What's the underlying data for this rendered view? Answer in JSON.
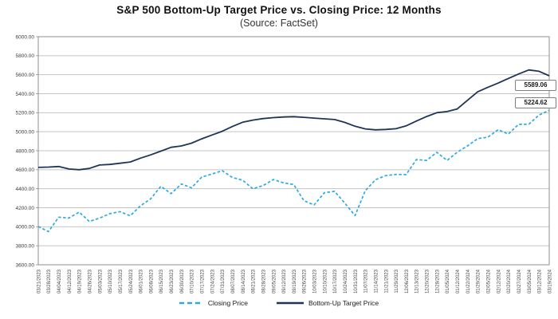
{
  "chart_data": {
    "type": "line",
    "title": "S&P 500 Bottom-Up Target Price vs. Closing Price: 12 Months",
    "subtitle": "(Source: FactSet)",
    "xlabel": "",
    "ylabel": "",
    "ylim": [
      3600,
      6000
    ],
    "ytick_step": 200,
    "ytick_format": "2-decimals",
    "grid": "horizontal-only",
    "legend_position": "bottom-center",
    "categories": [
      "03/21/2023",
      "03/28/2023",
      "04/04/2023",
      "04/12/2023",
      "04/19/2023",
      "04/26/2023",
      "05/03/2023",
      "05/10/2023",
      "05/17/2023",
      "05/24/2023",
      "06/01/2023",
      "06/08/2023",
      "06/15/2023",
      "06/23/2023",
      "06/30/2023",
      "07/10/2023",
      "07/17/2023",
      "07/24/2023",
      "07/31/2023",
      "08/07/2023",
      "08/14/2023",
      "08/21/2023",
      "08/28/2023",
      "09/05/2023",
      "09/12/2023",
      "09/19/2023",
      "09/26/2023",
      "10/03/2023",
      "10/10/2023",
      "10/17/2023",
      "10/24/2023",
      "10/31/2023",
      "11/07/2023",
      "11/14/2023",
      "11/21/2023",
      "11/29/2023",
      "12/06/2023",
      "12/13/2023",
      "12/20/2023",
      "12/28/2023",
      "01/05/2024",
      "01/12/2024",
      "01/22/2024",
      "01/29/2024",
      "02/05/2024",
      "02/12/2024",
      "02/20/2024",
      "02/27/2024",
      "03/05/2024",
      "03/12/2024",
      "03/19/2024"
    ],
    "series": [
      {
        "name": "Closing Price",
        "style": "dashed",
        "color": "#29abe2",
        "values": [
          4002.87,
          3948.72,
          4100.6,
          4091.95,
          4154.52,
          4055.99,
          4090.75,
          4137.64,
          4158.77,
          4115.24,
          4221.02,
          4293.93,
          4425.84,
          4348.33,
          4450.38,
          4409.53,
          4522.79,
          4554.64,
          4588.96,
          4518.44,
          4489.72,
          4399.77,
          4433.31,
          4496.83,
          4461.9,
          4443.95,
          4273.53,
          4229.45,
          4358.24,
          4373.2,
          4247.68,
          4117.37,
          4378.38,
          4495.7,
          4538.19,
          4550.58,
          4549.34,
          4707.09,
          4698.35,
          4783.35,
          4697.24,
          4783.83,
          4850.43,
          4927.93,
          4942.81,
          5021.84,
          4975.51,
          5078.18,
          5078.65,
          5175.27,
          5224.62
        ]
      },
      {
        "name": "Bottom-Up Target Price",
        "style": "solid",
        "color": "#1f3557",
        "values": [
          4625,
          4628,
          4634,
          4608,
          4600,
          4614,
          4650,
          4656,
          4668,
          4682,
          4722,
          4756,
          4796,
          4836,
          4850,
          4880,
          4925,
          4965,
          5005,
          5055,
          5100,
          5122,
          5138,
          5148,
          5155,
          5158,
          5152,
          5143,
          5136,
          5128,
          5098,
          5058,
          5030,
          5020,
          5024,
          5032,
          5062,
          5112,
          5160,
          5200,
          5212,
          5240,
          5330,
          5420,
          5468,
          5512,
          5560,
          5607,
          5650,
          5636,
          5589.06
        ]
      }
    ],
    "end_labels": {
      "target": "5589.06",
      "closing": "5224.62"
    },
    "colors": {
      "gridline": "#c4c4c4",
      "plot_border": "#8f8f8f",
      "tick_text": "#474747"
    }
  }
}
